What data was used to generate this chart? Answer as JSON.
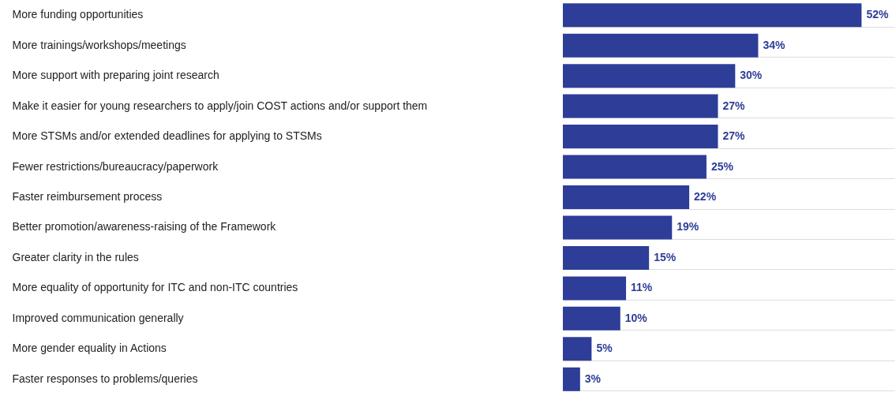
{
  "chart_data": {
    "type": "bar",
    "orientation": "horizontal",
    "grid": "y",
    "categories": [
      "More funding opportunities",
      "More trainings/workshops/meetings",
      "More support with preparing joint research",
      "Make it easier for young researchers to apply/join COST actions and/or support them",
      "More STSMs and/or extended deadlines for applying to STSMs",
      "Fewer restrictions/bureaucracy/paperwork",
      "Faster reimbursement process",
      "Better promotion/awareness-raising of the Framework",
      "Greater clarity in the rules",
      "More equality of opportunity for ITC and non-ITC countries",
      "Improved communication generally",
      "More gender equality in Actions",
      "Faster responses to problems/queries"
    ],
    "values": [
      52,
      34,
      30,
      27,
      27,
      25,
      22,
      19,
      15,
      11,
      10,
      5,
      3
    ],
    "value_labels": [
      "52%",
      "34%",
      "30%",
      "27%",
      "27%",
      "25%",
      "22%",
      "19%",
      "15%",
      "11%",
      "10%",
      "5%",
      "3%"
    ],
    "color": "#2e3d98"
  }
}
